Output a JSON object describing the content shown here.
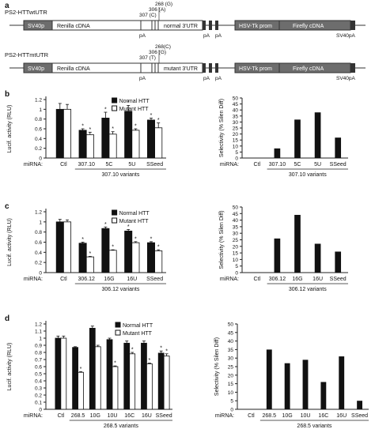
{
  "panel_a": {
    "label": "a",
    "constructs": [
      {
        "title": "PS2-HTTwtUTR",
        "segments": [
          "SV40p",
          "Renilla cDNA",
          "normal 3'UTR",
          "HSV-Tk prom",
          "Firefly cDNA"
        ],
        "pA_labels": [
          "pA",
          "pA",
          "pA"
        ],
        "end_label": "SV40pA",
        "sites": [
          "268 (G)",
          "306 (A)",
          "307 (C)"
        ]
      },
      {
        "title": "PS2-HTTmtUTR",
        "segments": [
          "SV40p",
          "Renilla cDNA",
          "mutant 3'UTR",
          "HSV-Tk prom",
          "Firefly cDNA"
        ],
        "pA_labels": [
          "pA",
          "pA",
          "pA"
        ],
        "end_label": "SV40pA",
        "sites": [
          "268(C)",
          "306 (G)",
          "307 (T)"
        ]
      }
    ]
  },
  "legend": {
    "normal": "Normal HTT",
    "mutant": "Mutant HTT"
  },
  "axis_text": {
    "luc_ylabel": "Lucif. activity (RLU)",
    "sel_ylabel": "Selectivity (% Silen Diff)",
    "mirna": "miRNA:"
  },
  "chart_data": [
    {
      "panel": "b",
      "type": "bar",
      "categories": [
        "Ctl",
        "307.10",
        "5C",
        "5U",
        "SSeed"
      ],
      "group_label": "307.10 variants",
      "ylim": [
        0,
        1.2
      ],
      "yticks": [
        "0",
        "0.2",
        "0.4",
        "0.6",
        "0.8",
        "1",
        "1.2"
      ],
      "series": [
        {
          "name": "Normal HTT",
          "values": [
            1.0,
            0.57,
            0.82,
            0.96,
            0.78
          ],
          "errors": [
            0.12,
            0.03,
            0.12,
            0.12,
            0.04
          ],
          "sig": [
            "",
            "*",
            "*",
            "*",
            "*"
          ]
        },
        {
          "name": "Mutant HTT",
          "values": [
            1.0,
            0.48,
            0.49,
            0.57,
            0.62
          ],
          "errors": [
            0.1,
            0.05,
            0.05,
            0.03,
            0.1
          ],
          "sig": [
            "",
            "*",
            "*",
            "*",
            "*"
          ]
        }
      ]
    },
    {
      "panel": "b",
      "type": "bar",
      "categories": [
        "Ctl",
        "307.10",
        "5C",
        "5U",
        "SSeed"
      ],
      "group_label": "307.10 variants",
      "ylim": [
        0,
        50
      ],
      "yticks": [
        "0",
        "5",
        "10",
        "15",
        "20",
        "25",
        "30",
        "35",
        "40",
        "45",
        "50"
      ],
      "values": [
        0,
        8,
        32,
        38,
        17
      ]
    },
    {
      "panel": "c",
      "type": "bar",
      "categories": [
        "Ctl",
        "306.12",
        "16G",
        "16U",
        "SSeed"
      ],
      "group_label": "306.12 variants",
      "ylim": [
        0,
        1.2
      ],
      "yticks": [
        "0",
        "0.2",
        "0.4",
        "0.6",
        "0.8",
        "1",
        "1.2"
      ],
      "series": [
        {
          "name": "Normal HTT",
          "values": [
            1.0,
            0.58,
            0.87,
            0.82,
            0.59
          ],
          "errors": [
            0.05,
            0.02,
            0.03,
            0.03,
            0.02
          ],
          "sig": [
            "",
            "*",
            "*",
            "*",
            "*"
          ]
        },
        {
          "name": "Mutant HTT",
          "values": [
            1.0,
            0.31,
            0.44,
            0.59,
            0.43
          ],
          "errors": [
            0.04,
            0.01,
            0.01,
            0.02,
            0.02
          ],
          "sig": [
            "",
            "*",
            "*",
            "*",
            "*"
          ]
        }
      ]
    },
    {
      "panel": "c",
      "type": "bar",
      "categories": [
        "Ctl",
        "306.12",
        "16G",
        "16U",
        "SSeed"
      ],
      "group_label": "306.12 variants",
      "ylim": [
        0,
        50
      ],
      "yticks": [
        "0",
        "5",
        "10",
        "15",
        "20",
        "25",
        "30",
        "35",
        "40",
        "45",
        "50"
      ],
      "values": [
        0,
        26,
        44,
        22,
        16
      ]
    },
    {
      "panel": "d",
      "type": "bar",
      "categories": [
        "Ctl",
        "268.5",
        "10G",
        "10U",
        "16C",
        "16U",
        "SSeed"
      ],
      "group_label": "268.5 variants",
      "ylim": [
        0,
        1.2
      ],
      "yticks": [
        "0",
        "0.1",
        "0.2",
        "0.3",
        "0.4",
        "0.5",
        "0.6",
        "0.7",
        "0.8",
        "0.9",
        "1",
        "1.1",
        "1.2"
      ],
      "series": [
        {
          "name": "Normal HTT",
          "values": [
            1.0,
            0.87,
            1.14,
            0.98,
            0.93,
            0.93,
            0.79
          ],
          "errors": [
            0.03,
            0.01,
            0.03,
            0.02,
            0.03,
            0.03,
            0.03
          ],
          "sig": [
            "",
            "",
            "",
            "",
            "",
            "",
            "*"
          ]
        },
        {
          "name": "Mutant HTT",
          "values": [
            1.0,
            0.52,
            0.88,
            0.6,
            0.78,
            0.64,
            0.75
          ],
          "errors": [
            0.03,
            0.01,
            0.02,
            0.01,
            0.02,
            0.01,
            0.03
          ],
          "sig": [
            "",
            "*",
            "",
            "*",
            "*",
            "*",
            "*"
          ]
        }
      ]
    },
    {
      "panel": "d",
      "type": "bar",
      "categories": [
        "Ctl",
        "268.5",
        "10G",
        "10U",
        "16C",
        "16U",
        "SSeed"
      ],
      "group_label": "268.5 variants",
      "ylim": [
        0,
        50
      ],
      "yticks": [
        "0",
        "5",
        "10",
        "15",
        "20",
        "25",
        "30",
        "35",
        "40",
        "45",
        "50"
      ],
      "values": [
        0,
        35,
        27,
        29,
        16,
        31,
        5
      ]
    }
  ]
}
